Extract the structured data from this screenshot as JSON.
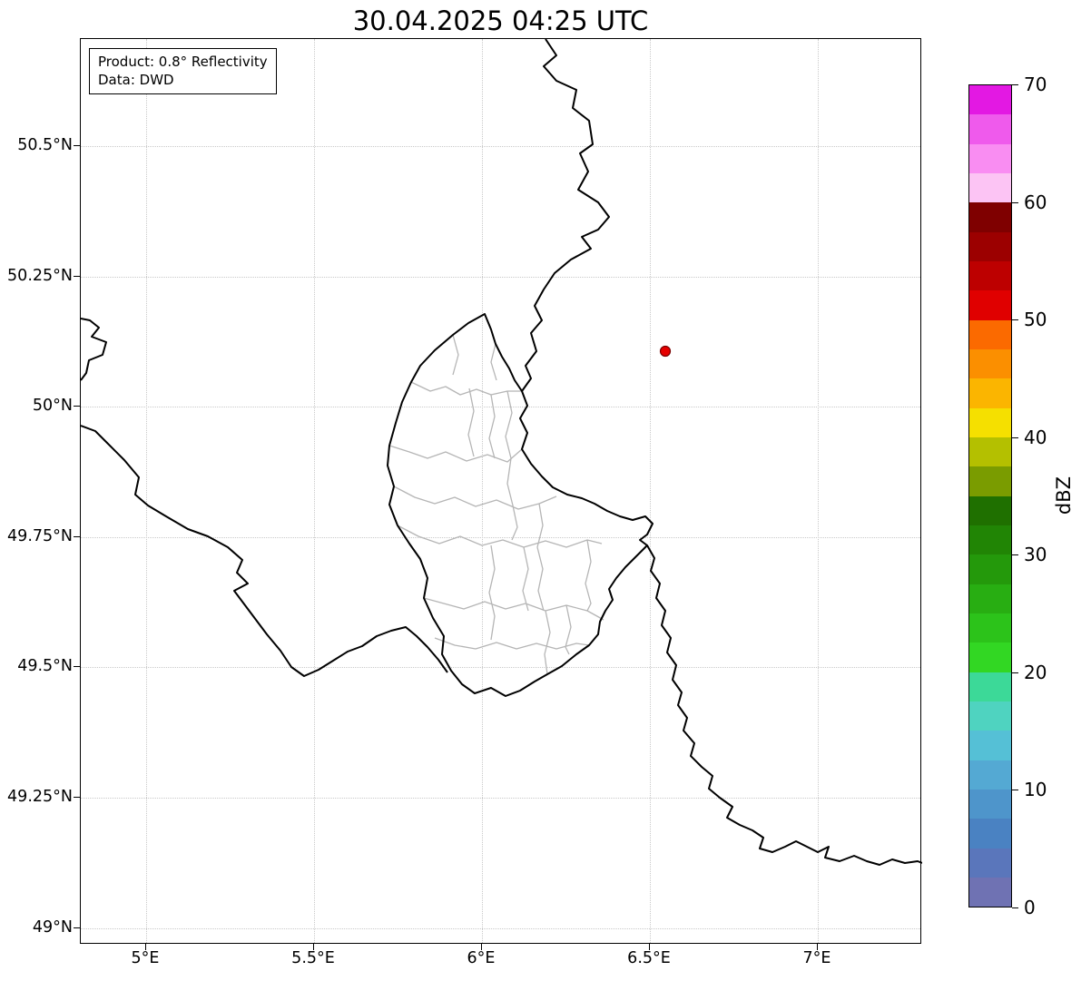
{
  "title": "30.04.2025 04:25 UTC",
  "annotation": {
    "line1": "Product: 0.8° Reflectivity",
    "line2": "Data: DWD"
  },
  "axes": {
    "x_ticks": [
      "5°E",
      "5.5°E",
      "6°E",
      "6.5°E",
      "7°E"
    ],
    "y_ticks": [
      "50.5°N",
      "50.25°N",
      "50°N",
      "49.75°N",
      "49.5°N",
      "49.25°N",
      "49°N"
    ]
  },
  "colorbar": {
    "label": "dBZ",
    "min": 0,
    "max": 70,
    "tick_labels_top_to_bottom": [
      "70",
      "60",
      "50",
      "40",
      "30",
      "20",
      "10",
      "0"
    ],
    "colors_top_to_bottom": [
      "#e318e3",
      "#ef5aec",
      "#f98df2",
      "#fcc4f4",
      "#7f0000",
      "#9c0000",
      "#bd0000",
      "#e00000",
      "#fb6a00",
      "#fb8f00",
      "#fbb500",
      "#f5e000",
      "#b4c000",
      "#7a9c00",
      "#1f7000",
      "#218505",
      "#24990b",
      "#28ae12",
      "#2cc31a",
      "#32d723",
      "#3cd998",
      "#4fd3c0",
      "#55c0d6",
      "#54a9d3",
      "#4e95cb",
      "#4a82c2",
      "#5a76bb",
      "#6f72b3"
    ]
  },
  "map": {
    "marker_color": "#e60000",
    "marker_edge_color": "#7a0000",
    "country_border_color": "#000000",
    "admin_border_color": "#b5b5b5"
  }
}
